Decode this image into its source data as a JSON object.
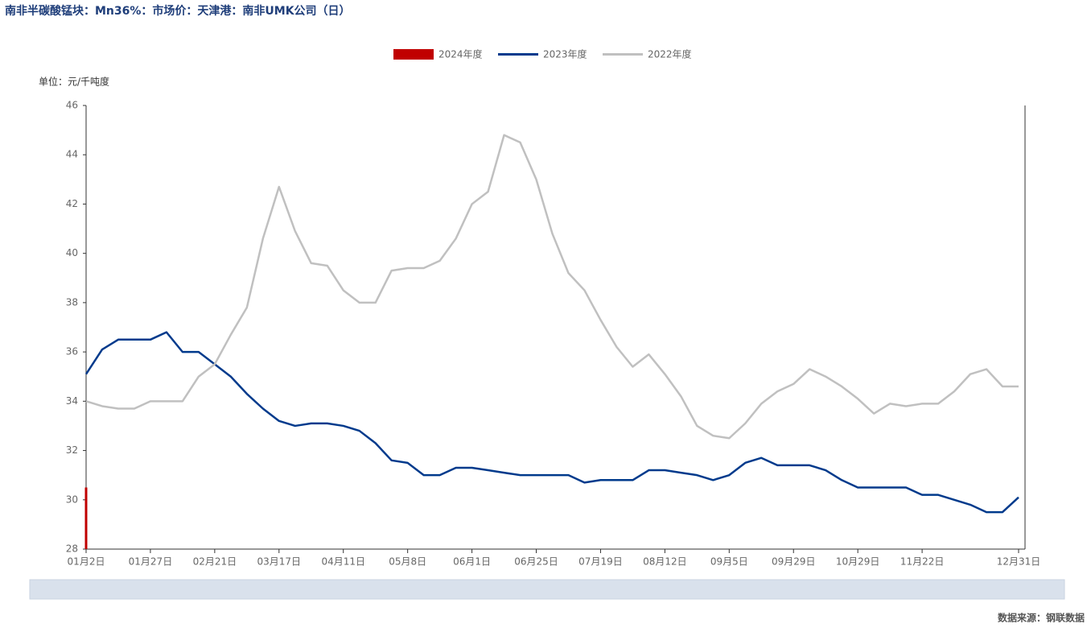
{
  "chart_data": {
    "type": "line",
    "title": "南非半碳酸锰块：Mn36%：市场价：天津港：南非UMK公司（日）",
    "y_axis_label": "单位：元/千吨度",
    "source": "数据来源：钢联数据",
    "categories": [
      "01月2日",
      null,
      null,
      null,
      "01月27日",
      null,
      null,
      null,
      "02月21日",
      null,
      null,
      null,
      "03月17日",
      null,
      null,
      null,
      "04月11日",
      null,
      null,
      null,
      "05月8日",
      null,
      null,
      null,
      "06月1日",
      null,
      null,
      null,
      "06月25日",
      null,
      null,
      null,
      "07月19日",
      null,
      null,
      null,
      "08月12日",
      null,
      null,
      null,
      "09月5日",
      null,
      null,
      null,
      "09月29日",
      null,
      null,
      null,
      "10月29日",
      null,
      null,
      null,
      "11月22日",
      null,
      null,
      null,
      null,
      null,
      "12月31日"
    ],
    "series": [
      {
        "name": "2024年度",
        "type": "bar",
        "color": "#c00000",
        "values": [
          30.5,
          null,
          null,
          null,
          null,
          null,
          null,
          null,
          null,
          null,
          null,
          null,
          null,
          null,
          null,
          null,
          null,
          null,
          null,
          null,
          null,
          null,
          null,
          null,
          null,
          null,
          null,
          null,
          null,
          null,
          null,
          null,
          null,
          null,
          null,
          null,
          null,
          null,
          null,
          null,
          null,
          null,
          null,
          null,
          null,
          null,
          null,
          null,
          null,
          null,
          null,
          null,
          null,
          null,
          null,
          null,
          null,
          null,
          null
        ]
      },
      {
        "name": "2023年度",
        "type": "line",
        "color": "#003a8c",
        "values": [
          35.1,
          36.1,
          36.5,
          36.5,
          36.5,
          36.8,
          36.0,
          36.0,
          35.5,
          35.0,
          34.3,
          33.7,
          33.2,
          33.0,
          33.1,
          33.1,
          33.0,
          32.8,
          32.3,
          31.6,
          31.5,
          31.0,
          31.0,
          31.3,
          31.3,
          31.2,
          31.1,
          31.0,
          31.0,
          31.0,
          31.0,
          30.7,
          30.8,
          30.8,
          30.8,
          31.2,
          31.2,
          31.1,
          31.0,
          30.8,
          31.0,
          31.5,
          31.7,
          31.4,
          31.4,
          31.4,
          31.2,
          30.8,
          30.5,
          30.5,
          30.5,
          30.5,
          30.2,
          30.2,
          30.0,
          29.8,
          29.5,
          29.5,
          30.1
        ]
      },
      {
        "name": "2022年度",
        "type": "line",
        "color": "#c0c0c0",
        "values": [
          34.0,
          33.8,
          33.7,
          33.7,
          34.0,
          34.0,
          34.0,
          35.0,
          35.5,
          36.7,
          37.8,
          40.6,
          42.7,
          40.9,
          39.6,
          39.5,
          38.5,
          38.0,
          38.0,
          39.3,
          39.4,
          39.4,
          39.7,
          40.6,
          42.0,
          42.5,
          44.8,
          44.5,
          43.0,
          40.8,
          39.2,
          38.5,
          37.3,
          36.2,
          35.4,
          35.9,
          35.1,
          34.2,
          33.0,
          32.6,
          32.5,
          33.1,
          33.9,
          34.4,
          34.7,
          35.3,
          35.0,
          34.6,
          34.1,
          33.5,
          33.9,
          33.8,
          33.9,
          33.9,
          34.4,
          35.1,
          35.3,
          34.6,
          34.6
        ]
      }
    ],
    "ylim": [
      28,
      46
    ],
    "yticks": [
      28,
      30,
      32,
      34,
      36,
      38,
      40,
      42,
      44,
      46
    ],
    "grid": false,
    "legend": "top"
  }
}
